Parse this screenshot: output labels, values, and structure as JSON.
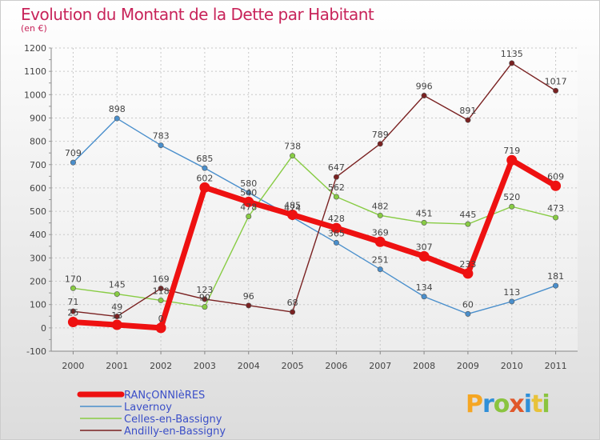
{
  "title": "Evolution du Montant de la Dette par Habitant",
  "unit": "(en €)",
  "brand": "Proxiti",
  "brand_colors": [
    "#f5a623",
    "#2f8fd8",
    "#8ac43f",
    "#e0572a",
    "#2f8fd8",
    "#e8c23a",
    "#8ac43f"
  ],
  "chart_data": {
    "type": "line",
    "x": [
      "2000",
      "2001",
      "2002",
      "2003",
      "2004",
      "2005",
      "2006",
      "2007",
      "2008",
      "2009",
      "2010",
      "2011"
    ],
    "ylim": [
      -100,
      1200
    ],
    "yticks": [
      -100,
      0,
      100,
      200,
      300,
      400,
      500,
      600,
      700,
      800,
      900,
      1000,
      1100,
      1200
    ],
    "grid": true,
    "legend_position": "bottom",
    "series": [
      {
        "name": "RANçONNIèRES",
        "color": "#ee1111",
        "values": [
          25,
          13,
          0,
          602,
          540,
          485,
          428,
          369,
          307,
          233,
          719,
          609
        ]
      },
      {
        "name": "Lavernoy",
        "color": "#4a8fcc",
        "values": [
          709,
          898,
          783,
          685,
          580,
          474,
          365,
          251,
          134,
          60,
          113,
          181
        ]
      },
      {
        "name": "Celles-en-Bassigny",
        "color": "#88cc44",
        "values": [
          170,
          145,
          118,
          90,
          478,
          738,
          562,
          482,
          451,
          445,
          520,
          473
        ]
      },
      {
        "name": "Andilly-en-Bassigny",
        "color": "#7a2222",
        "values": [
          71,
          49,
          169,
          123,
          96,
          68,
          647,
          789,
          996,
          891,
          1135,
          1017
        ]
      }
    ]
  }
}
